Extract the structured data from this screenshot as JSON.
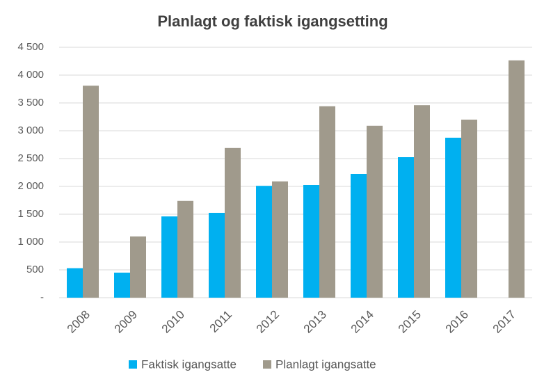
{
  "chart_data": {
    "type": "bar",
    "title": "Planlagt og faktisk igangsetting",
    "categories": [
      "2008",
      "2009",
      "2010",
      "2011",
      "2012",
      "2013",
      "2014",
      "2015",
      "2016",
      "2017"
    ],
    "series": [
      {
        "name": "Faktisk igangsatte",
        "color": "#00b0f0",
        "values": [
          530,
          450,
          1460,
          1525,
          2010,
          2025,
          2225,
          2525,
          2875,
          null
        ]
      },
      {
        "name": "Planlagt igangsatte",
        "color": "#a09a8c",
        "values": [
          3810,
          1100,
          1740,
          2690,
          2090,
          3440,
          3090,
          3460,
          3200,
          4265
        ]
      }
    ],
    "ylim": [
      0,
      4500
    ],
    "yticks": [
      {
        "value": 0,
        "label": "-"
      },
      500,
      {
        "value": 1000,
        "label": "1 000"
      },
      {
        "value": 1500,
        "label": "1 500"
      },
      {
        "value": 2000,
        "label": "2 000"
      },
      {
        "value": 2500,
        "label": "2 500"
      },
      {
        "value": 3000,
        "label": "3 000"
      },
      {
        "value": 3500,
        "label": "3 500"
      },
      {
        "value": 4000,
        "label": "4 000"
      },
      {
        "value": 4500,
        "label": "4 500"
      }
    ],
    "grid": true
  }
}
